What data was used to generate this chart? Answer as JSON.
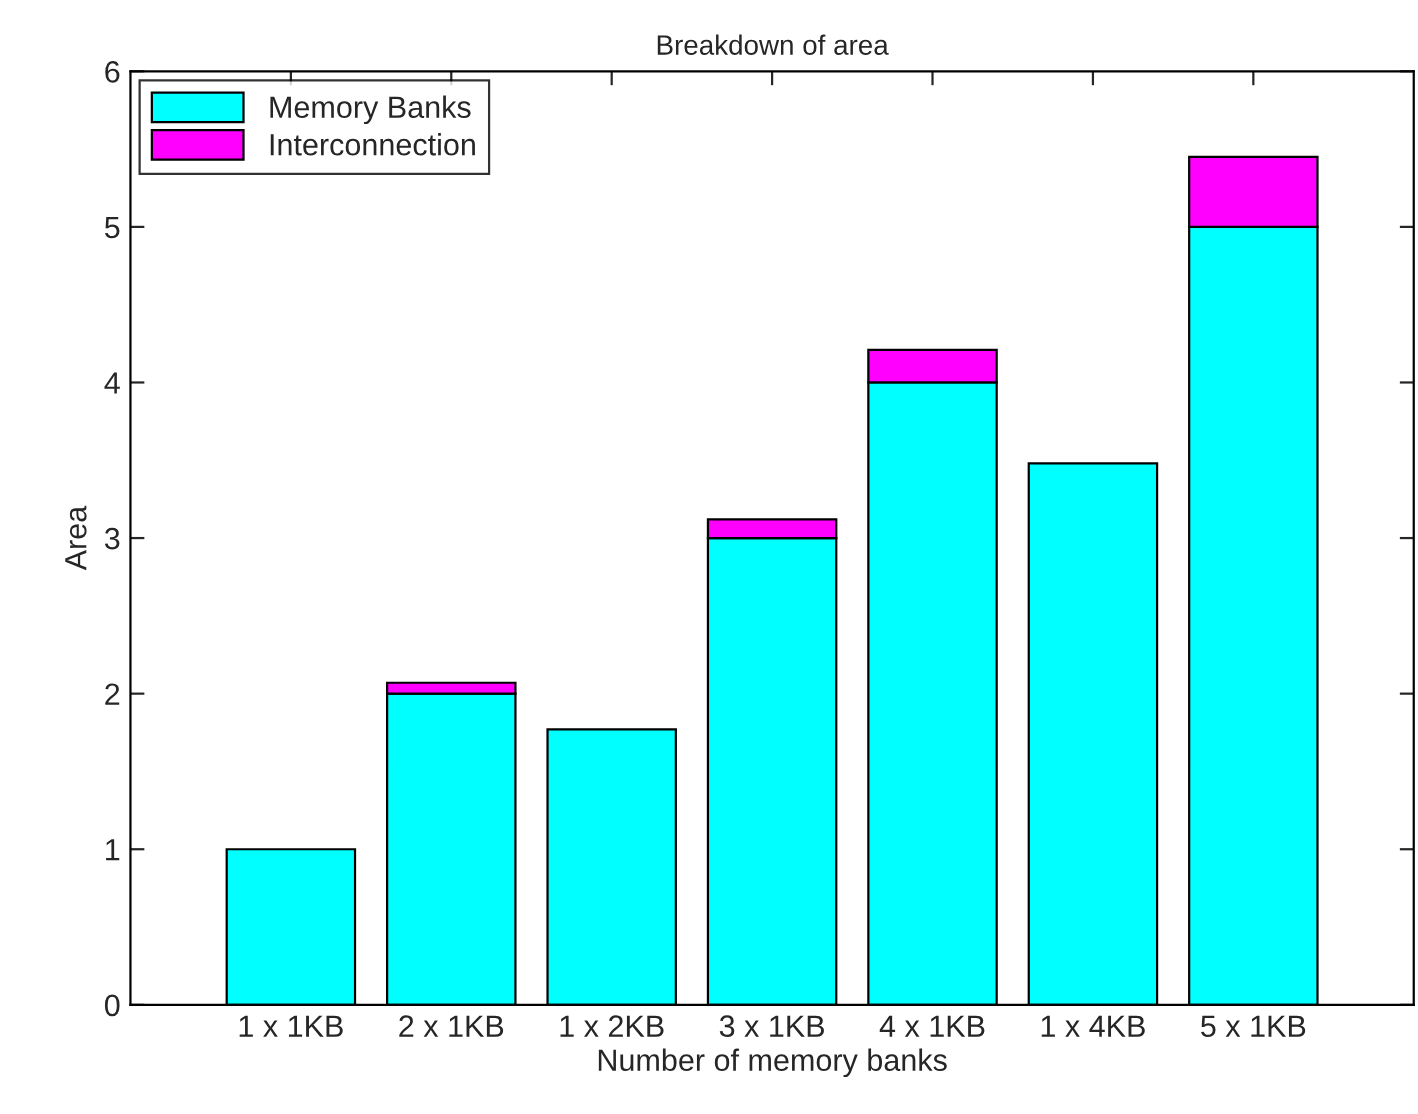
{
  "chart_data": {
    "type": "bar",
    "title": "Breakdown of area",
    "xlabel": "Number of memory banks",
    "ylabel": "Area",
    "categories": [
      "1 x 1KB",
      "2 x 1KB",
      "1 x 2KB",
      "3 x 1KB",
      "4 x 1KB",
      "1 x 4KB",
      "5 x 1KB"
    ],
    "series": [
      {
        "name": "Memory Banks",
        "color": "#00ffff",
        "values": [
          1.0,
          2.0,
          1.77,
          3.0,
          4.0,
          3.48,
          5.0
        ]
      },
      {
        "name": "Interconnection",
        "color": "#ff00ff",
        "values": [
          null,
          0.07,
          null,
          0.12,
          0.21,
          null,
          0.45
        ]
      }
    ],
    "stacked": true,
    "ylim": [
      0,
      6
    ],
    "yticks": [
      0,
      1,
      2,
      3,
      4,
      5,
      6
    ],
    "grid": false,
    "legend": "top left"
  }
}
